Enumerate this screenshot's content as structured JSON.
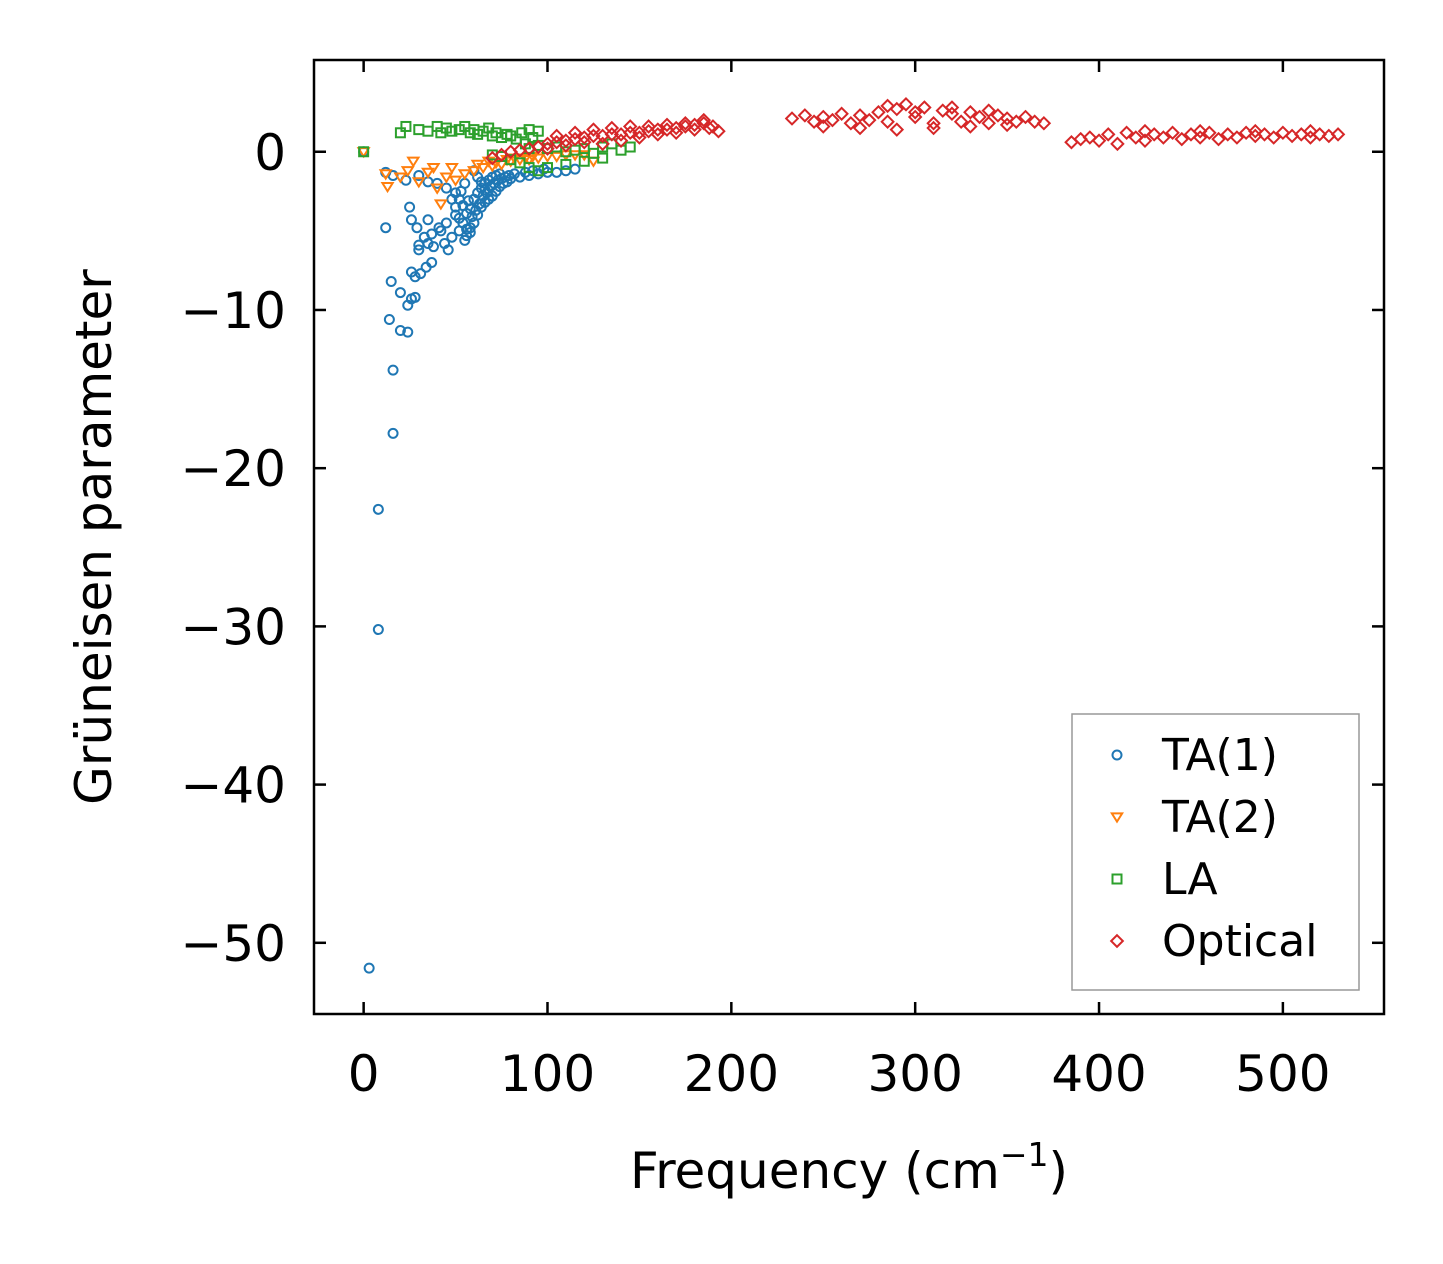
{
  "chart_data": {
    "type": "scatter",
    "title": "",
    "xlabel": "Frequency (cm",
    "xlabel_sup": "−1",
    "xlabel_suffix": ")",
    "ylabel": "Grüneisen parameter",
    "xlim": [
      -27,
      555
    ],
    "ylim": [
      -54.5,
      5.8
    ],
    "x_ticks": [
      0,
      100,
      200,
      300,
      400,
      500
    ],
    "x_tick_labels": [
      "0",
      "100",
      "200",
      "300",
      "400",
      "500"
    ],
    "y_ticks": [
      0,
      -10,
      -20,
      -30,
      -40,
      -50
    ],
    "y_tick_labels": [
      "0",
      "−10",
      "−20",
      "−30",
      "−40",
      "−50"
    ],
    "grid": false,
    "legend_position": "bottom-right",
    "series": [
      {
        "name": "TA(1)",
        "marker": "circle",
        "color": "#1f77b4",
        "points": [
          [
            0,
            0
          ],
          [
            3,
            -51.6
          ],
          [
            8,
            -30.2
          ],
          [
            8,
            -22.6
          ],
          [
            16,
            -17.8
          ],
          [
            16,
            -13.8
          ],
          [
            14,
            -10.6
          ],
          [
            20,
            -11.3
          ],
          [
            24,
            -11.4
          ],
          [
            20,
            -8.9
          ],
          [
            15,
            -8.2
          ],
          [
            12,
            -4.8
          ],
          [
            24,
            -9.7
          ],
          [
            26,
            -9.3
          ],
          [
            28,
            -9.2
          ],
          [
            26,
            -7.6
          ],
          [
            28,
            -7.9
          ],
          [
            31,
            -7.7
          ],
          [
            30,
            -6.2
          ],
          [
            34,
            -7.3
          ],
          [
            37,
            -7.0
          ],
          [
            35,
            -5.8
          ],
          [
            30,
            -5.9
          ],
          [
            26,
            -4.3
          ],
          [
            25,
            -3.5
          ],
          [
            29,
            -4.8
          ],
          [
            33,
            -5.4
          ],
          [
            37,
            -5.2
          ],
          [
            35,
            -4.3
          ],
          [
            38,
            -6.0
          ],
          [
            42,
            -5.0
          ],
          [
            44,
            -5.8
          ],
          [
            46,
            -6.2
          ],
          [
            41,
            -4.8
          ],
          [
            48,
            -5.4
          ],
          [
            45,
            -4.5
          ],
          [
            50,
            -4.0
          ],
          [
            52,
            -5.0
          ],
          [
            55,
            -5.6
          ],
          [
            56,
            -5.3
          ],
          [
            58,
            -4.8
          ],
          [
            60,
            -4.5
          ],
          [
            62,
            -4.0
          ],
          [
            64,
            -3.5
          ],
          [
            66,
            -3.2
          ],
          [
            68,
            -3.0
          ],
          [
            70,
            -2.8
          ],
          [
            72,
            -2.5
          ],
          [
            74,
            -2.2
          ],
          [
            76,
            -2.0
          ],
          [
            78,
            -1.9
          ],
          [
            80,
            -1.7
          ],
          [
            85,
            -1.6
          ],
          [
            90,
            -1.5
          ],
          [
            95,
            -1.4
          ],
          [
            100,
            -1.3
          ],
          [
            105,
            -1.3
          ],
          [
            110,
            -1.2
          ],
          [
            115,
            -1.1
          ],
          [
            12,
            -1.3
          ],
          [
            16,
            -1.5
          ],
          [
            23,
            -1.8
          ],
          [
            30,
            -1.5
          ],
          [
            35,
            -1.9
          ],
          [
            40,
            -2.0
          ],
          [
            45,
            -2.3
          ],
          [
            50,
            -2.6
          ],
          [
            52,
            -3.0
          ],
          [
            54,
            -3.4
          ],
          [
            56,
            -3.9
          ],
          [
            58,
            -3.6
          ],
          [
            60,
            -3.0
          ],
          [
            62,
            -2.6
          ],
          [
            64,
            -2.3
          ],
          [
            66,
            -2.0
          ],
          [
            68,
            -1.8
          ],
          [
            70,
            -1.6
          ],
          [
            72,
            -1.5
          ],
          [
            74,
            -1.4
          ],
          [
            60,
            -1.2
          ],
          [
            62,
            -1.6
          ],
          [
            64,
            -1.9
          ],
          [
            66,
            -2.4
          ],
          [
            55,
            -2.0
          ],
          [
            53,
            -2.5
          ],
          [
            57,
            -3.1
          ],
          [
            59,
            -4.1
          ],
          [
            61,
            -3.7
          ],
          [
            63,
            -3.3
          ],
          [
            65,
            -2.8
          ],
          [
            67,
            -2.6
          ],
          [
            69,
            -2.2
          ],
          [
            71,
            -2.0
          ],
          [
            73,
            -1.8
          ],
          [
            75,
            -1.7
          ],
          [
            77,
            -1.6
          ],
          [
            79,
            -1.5
          ],
          [
            82,
            -1.4
          ],
          [
            88,
            -1.3
          ],
          [
            92,
            -1.2
          ],
          [
            98,
            -1.1
          ],
          [
            48,
            -3.0
          ],
          [
            50,
            -3.5
          ],
          [
            52,
            -4.2
          ],
          [
            54,
            -4.5
          ],
          [
            56,
            -4.9
          ],
          [
            58,
            -5.1
          ]
        ]
      },
      {
        "name": "TA(2)",
        "marker": "triangle-down",
        "color": "#ff7f0e",
        "points": [
          [
            0,
            0
          ],
          [
            12,
            -1.4
          ],
          [
            13,
            -2.2
          ],
          [
            20,
            -1.6
          ],
          [
            24,
            -1.2
          ],
          [
            27,
            -0.6
          ],
          [
            30,
            -1.9
          ],
          [
            35,
            -1.3
          ],
          [
            38,
            -1.0
          ],
          [
            40,
            -2.3
          ],
          [
            42,
            -3.3
          ],
          [
            45,
            -1.6
          ],
          [
            48,
            -1.0
          ],
          [
            50,
            -1.8
          ],
          [
            55,
            -1.4
          ],
          [
            60,
            -1.2
          ],
          [
            65,
            -1.0
          ],
          [
            70,
            -0.9
          ],
          [
            75,
            -0.8
          ],
          [
            80,
            -0.6
          ],
          [
            85,
            -0.5
          ],
          [
            90,
            -0.5
          ],
          [
            95,
            -0.4
          ],
          [
            100,
            -0.3
          ],
          [
            105,
            -0.3
          ],
          [
            110,
            -0.2
          ],
          [
            115,
            -0.2
          ],
          [
            120,
            -0.2
          ],
          [
            125,
            -0.6
          ],
          [
            62,
            -0.8
          ],
          [
            68,
            -0.6
          ],
          [
            72,
            -0.7
          ],
          [
            78,
            -0.5
          ],
          [
            82,
            -0.4
          ],
          [
            88,
            -0.4
          ],
          [
            92,
            -0.3
          ]
        ]
      },
      {
        "name": "LA",
        "marker": "square",
        "color": "#2ca02c",
        "points": [
          [
            0,
            0
          ],
          [
            20,
            1.2
          ],
          [
            23,
            1.6
          ],
          [
            30,
            1.4
          ],
          [
            35,
            1.3
          ],
          [
            40,
            1.6
          ],
          [
            42,
            1.2
          ],
          [
            45,
            1.5
          ],
          [
            48,
            1.3
          ],
          [
            52,
            1.4
          ],
          [
            55,
            1.6
          ],
          [
            58,
            1.2
          ],
          [
            60,
            1.4
          ],
          [
            62,
            1.1
          ],
          [
            65,
            1.3
          ],
          [
            68,
            1.5
          ],
          [
            70,
            1.0
          ],
          [
            72,
            1.2
          ],
          [
            75,
            0.9
          ],
          [
            78,
            1.1
          ],
          [
            80,
            1.0
          ],
          [
            83,
            0.8
          ],
          [
            86,
            1.2
          ],
          [
            90,
            1.4
          ],
          [
            92,
            0.9
          ],
          [
            95,
            1.3
          ],
          [
            88,
            0.5
          ],
          [
            90,
            0.2
          ],
          [
            95,
            0.4
          ],
          [
            100,
            0.2
          ],
          [
            105,
            0.3
          ],
          [
            110,
            0.0
          ],
          [
            115,
            0.1
          ],
          [
            120,
            0.2
          ],
          [
            125,
            -0.1
          ],
          [
            130,
            0.3
          ],
          [
            135,
            0.5
          ],
          [
            140,
            0.1
          ],
          [
            145,
            0.3
          ],
          [
            130,
            -0.4
          ],
          [
            120,
            -0.6
          ],
          [
            110,
            -0.8
          ],
          [
            100,
            -1.0
          ],
          [
            95,
            -1.2
          ],
          [
            90,
            -1.0
          ],
          [
            85,
            -0.7
          ],
          [
            80,
            -0.5
          ],
          [
            75,
            -0.3
          ],
          [
            70,
            -0.2
          ]
        ]
      },
      {
        "name": "Optical",
        "marker": "diamond",
        "color": "#d62728",
        "points": [
          [
            70,
            -0.4
          ],
          [
            75,
            -0.2
          ],
          [
            80,
            0.0
          ],
          [
            85,
            0.1
          ],
          [
            90,
            0.2
          ],
          [
            95,
            0.3
          ],
          [
            100,
            0.5
          ],
          [
            105,
            0.6
          ],
          [
            110,
            0.7
          ],
          [
            115,
            0.8
          ],
          [
            120,
            0.9
          ],
          [
            125,
            1.0
          ],
          [
            130,
            1.0
          ],
          [
            135,
            1.1
          ],
          [
            140,
            1.1
          ],
          [
            145,
            1.2
          ],
          [
            150,
            1.2
          ],
          [
            155,
            1.3
          ],
          [
            160,
            1.4
          ],
          [
            165,
            1.4
          ],
          [
            170,
            1.5
          ],
          [
            175,
            1.6
          ],
          [
            180,
            1.7
          ],
          [
            185,
            1.8
          ],
          [
            190,
            1.6
          ],
          [
            193,
            1.3
          ],
          [
            100,
            0.2
          ],
          [
            110,
            0.4
          ],
          [
            120,
            0.6
          ],
          [
            130,
            0.5
          ],
          [
            140,
            0.7
          ],
          [
            150,
            0.9
          ],
          [
            160,
            1.1
          ],
          [
            170,
            1.2
          ],
          [
            180,
            1.4
          ],
          [
            188,
            1.5
          ],
          [
            105,
            1.0
          ],
          [
            115,
            1.2
          ],
          [
            125,
            1.4
          ],
          [
            135,
            1.5
          ],
          [
            145,
            1.6
          ],
          [
            155,
            1.6
          ],
          [
            165,
            1.7
          ],
          [
            175,
            1.8
          ],
          [
            185,
            2.0
          ],
          [
            233,
            2.1
          ],
          [
            240,
            2.3
          ],
          [
            245,
            1.9
          ],
          [
            250,
            2.2
          ],
          [
            255,
            2.0
          ],
          [
            260,
            2.4
          ],
          [
            265,
            1.8
          ],
          [
            270,
            2.3
          ],
          [
            275,
            2.0
          ],
          [
            280,
            2.5
          ],
          [
            285,
            1.9
          ],
          [
            290,
            2.7
          ],
          [
            295,
            3.0
          ],
          [
            300,
            2.2
          ],
          [
            305,
            2.8
          ],
          [
            310,
            1.8
          ],
          [
            315,
            2.6
          ],
          [
            320,
            2.4
          ],
          [
            325,
            1.9
          ],
          [
            330,
            2.5
          ],
          [
            335,
            2.2
          ],
          [
            340,
            1.8
          ],
          [
            345,
            2.3
          ],
          [
            350,
            2.1
          ],
          [
            355,
            1.9
          ],
          [
            360,
            2.2
          ],
          [
            365,
            1.9
          ],
          [
            370,
            1.8
          ],
          [
            250,
            1.6
          ],
          [
            270,
            1.5
          ],
          [
            290,
            1.4
          ],
          [
            310,
            1.5
          ],
          [
            330,
            1.6
          ],
          [
            350,
            1.7
          ],
          [
            285,
            2.9
          ],
          [
            300,
            2.5
          ],
          [
            320,
            2.8
          ],
          [
            340,
            2.6
          ],
          [
            385,
            0.6
          ],
          [
            390,
            0.8
          ],
          [
            395,
            0.9
          ],
          [
            400,
            0.7
          ],
          [
            405,
            1.1
          ],
          [
            410,
            0.5
          ],
          [
            415,
            1.2
          ],
          [
            420,
            0.9
          ],
          [
            425,
            0.7
          ],
          [
            430,
            1.1
          ],
          [
            435,
            0.9
          ],
          [
            440,
            1.2
          ],
          [
            445,
            0.8
          ],
          [
            450,
            1.1
          ],
          [
            455,
            0.9
          ],
          [
            460,
            1.2
          ],
          [
            465,
            0.8
          ],
          [
            470,
            1.1
          ],
          [
            475,
            0.9
          ],
          [
            480,
            1.2
          ],
          [
            485,
            1.0
          ],
          [
            490,
            1.1
          ],
          [
            495,
            0.9
          ],
          [
            500,
            1.2
          ],
          [
            505,
            1.0
          ],
          [
            510,
            1.1
          ],
          [
            515,
            0.9
          ],
          [
            520,
            1.1
          ],
          [
            525,
            1.0
          ],
          [
            530,
            1.1
          ],
          [
            425,
            1.3
          ],
          [
            455,
            1.3
          ],
          [
            485,
            1.3
          ],
          [
            515,
            1.3
          ]
        ]
      }
    ]
  }
}
